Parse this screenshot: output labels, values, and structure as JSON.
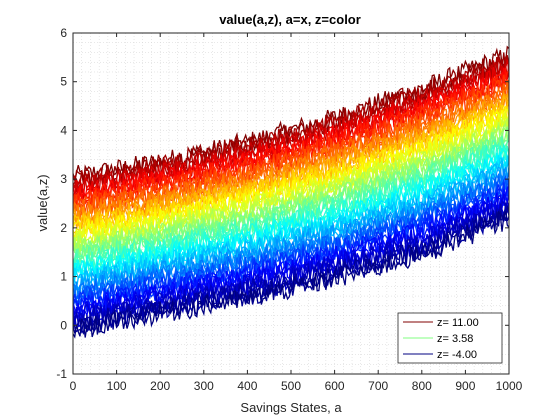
{
  "chart_data": {
    "type": "line",
    "title": "value(a,z), a=x, z=color",
    "xlabel": "Savings States, a",
    "ylabel": "value(a,z)",
    "xlim": [
      0,
      1000
    ],
    "ylim": [
      -1,
      6
    ],
    "xticks": [
      0,
      100,
      200,
      300,
      400,
      500,
      600,
      700,
      800,
      900,
      1000
    ],
    "yticks": [
      -1,
      0,
      1,
      2,
      3,
      4,
      5,
      6
    ],
    "grid": "minor dotted",
    "legend_position": "bottom-right",
    "colormap": "jet",
    "z_range": [
      -4.0,
      11.0
    ],
    "num_curves": 60,
    "curve_envelope": {
      "lowest_curve": {
        "x": [
          0,
          200,
          400,
          600,
          800,
          1000
        ],
        "y": [
          -0.1,
          0.25,
          0.55,
          0.95,
          1.45,
          2.2
        ]
      },
      "highest_curve": {
        "x": [
          0,
          200,
          400,
          600,
          800,
          1000
        ],
        "y": [
          3.05,
          3.35,
          3.75,
          4.25,
          4.85,
          5.55
        ]
      },
      "noise_amplitude": 0.22
    },
    "series": [
      {
        "name": "z= 11.00",
        "color": "#800000",
        "z": 11.0
      },
      {
        "name": "z=  3.58",
        "color": "#80ff80",
        "z": 3.58
      },
      {
        "name": "z= -4.00",
        "color": "#000080",
        "z": -4.0
      }
    ]
  }
}
